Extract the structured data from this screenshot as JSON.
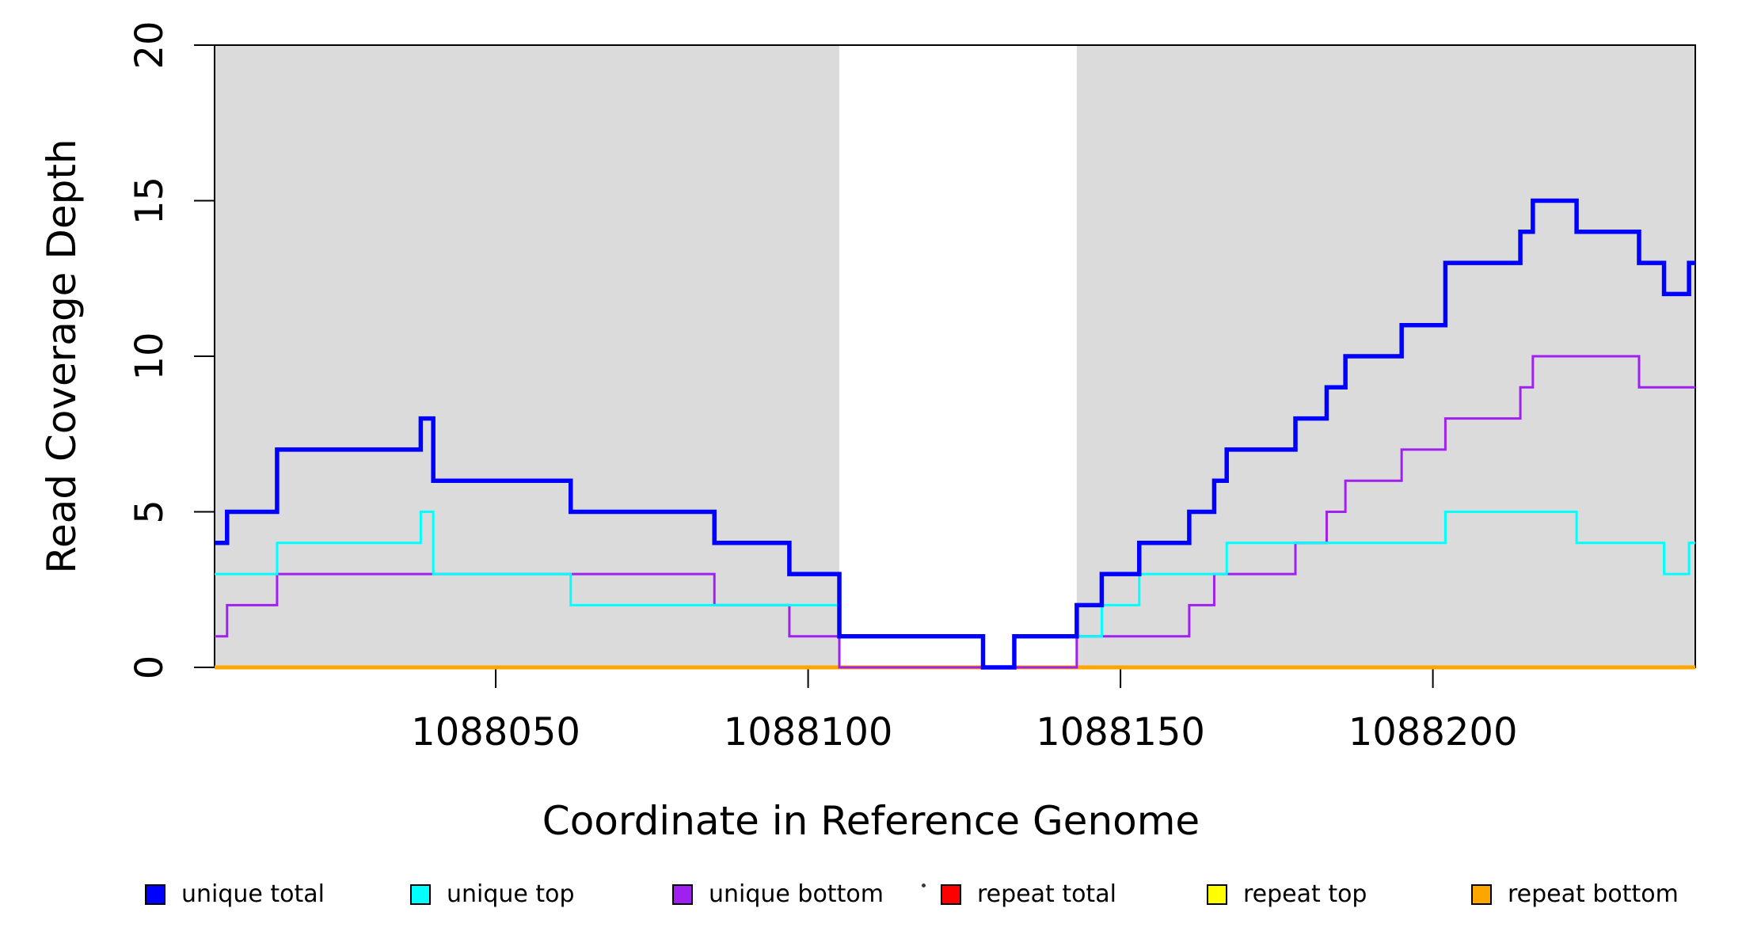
{
  "figure": {
    "background_color": "#ffffff",
    "plot_background_shaded": "#DBDBDB"
  },
  "chart_data": {
    "type": "line",
    "subtype": "step-coverage",
    "title": "",
    "xlabel": "Coordinate in Reference Genome",
    "ylabel": "Read Coverage Depth",
    "xlim": [
      1088005,
      1088242
    ],
    "ylim": [
      0,
      20
    ],
    "x_ticks": [
      1088050,
      1088100,
      1088150,
      1088200
    ],
    "y_ticks": [
      0,
      5,
      10,
      15,
      20
    ],
    "grid": false,
    "shaded_regions": [
      {
        "name": "unique-region-left",
        "x0": 1088005,
        "x1": 1088105,
        "color": "#DBDBDB"
      },
      {
        "name": "unique-region-right",
        "x0": 1088143,
        "x1": 1088242,
        "color": "#DBDBDB"
      }
    ],
    "draw_order": [
      "repeat total",
      "repeat top",
      "repeat bottom",
      "unique bottom",
      "unique top",
      "unique total"
    ],
    "series": [
      {
        "name": "unique total",
        "color": "#0000FF",
        "line_width": 5.5,
        "points": [
          [
            1088005,
            4
          ],
          [
            1088007,
            5
          ],
          [
            1088015,
            7
          ],
          [
            1088038,
            8
          ],
          [
            1088040,
            6
          ],
          [
            1088062,
            5
          ],
          [
            1088085,
            4
          ],
          [
            1088097,
            3
          ],
          [
            1088105,
            1
          ],
          [
            1088128,
            0
          ],
          [
            1088133,
            1
          ],
          [
            1088143,
            2
          ],
          [
            1088147,
            3
          ],
          [
            1088153,
            4
          ],
          [
            1088161,
            5
          ],
          [
            1088165,
            6
          ],
          [
            1088167,
            7
          ],
          [
            1088178,
            8
          ],
          [
            1088183,
            9
          ],
          [
            1088186,
            10
          ],
          [
            1088195,
            11
          ],
          [
            1088202,
            13
          ],
          [
            1088214,
            14
          ],
          [
            1088216,
            15
          ],
          [
            1088223,
            14
          ],
          [
            1088233,
            13
          ],
          [
            1088237,
            12
          ],
          [
            1088241,
            13
          ]
        ]
      },
      {
        "name": "unique top",
        "color": "#00FFFF",
        "line_width": 3,
        "points": [
          [
            1088005,
            3
          ],
          [
            1088015,
            4
          ],
          [
            1088038,
            5
          ],
          [
            1088040,
            3
          ],
          [
            1088062,
            2
          ],
          [
            1088105,
            1
          ],
          [
            1088128,
            0
          ],
          [
            1088133,
            1
          ],
          [
            1088147,
            2
          ],
          [
            1088153,
            3
          ],
          [
            1088167,
            4
          ],
          [
            1088202,
            5
          ],
          [
            1088223,
            4
          ],
          [
            1088237,
            3
          ],
          [
            1088241,
            4
          ]
        ]
      },
      {
        "name": "unique bottom",
        "color": "#A020F0",
        "line_width": 3,
        "points": [
          [
            1088005,
            1
          ],
          [
            1088007,
            2
          ],
          [
            1088015,
            3
          ],
          [
            1088085,
            2
          ],
          [
            1088097,
            1
          ],
          [
            1088105,
            0
          ],
          [
            1088143,
            1
          ],
          [
            1088161,
            2
          ],
          [
            1088165,
            3
          ],
          [
            1088178,
            4
          ],
          [
            1088183,
            5
          ],
          [
            1088186,
            6
          ],
          [
            1088195,
            7
          ],
          [
            1088202,
            8
          ],
          [
            1088214,
            9
          ],
          [
            1088216,
            10
          ],
          [
            1088233,
            9
          ]
        ]
      },
      {
        "name": "repeat total",
        "color": "#FF0000",
        "line_width": 3,
        "points": [
          [
            1088005,
            0
          ]
        ]
      },
      {
        "name": "repeat top",
        "color": "#FFFF00",
        "line_width": 3,
        "points": [
          [
            1088005,
            0
          ]
        ]
      },
      {
        "name": "repeat bottom",
        "color": "#FFA500",
        "line_width": 5,
        "points": [
          [
            1088005,
            0
          ]
        ]
      }
    ],
    "legend": [
      {
        "label": "unique total",
        "color": "#0000FF"
      },
      {
        "label": "unique top",
        "color": "#00FFFF"
      },
      {
        "label": "unique bottom",
        "color": "#A020F0"
      },
      {
        "label": "repeat total",
        "color": "#FF0000"
      },
      {
        "label": "repeat top",
        "color": "#FFFF00"
      },
      {
        "label": "repeat bottom",
        "color": "#FFA500"
      }
    ],
    "legend_position": "bottom"
  }
}
